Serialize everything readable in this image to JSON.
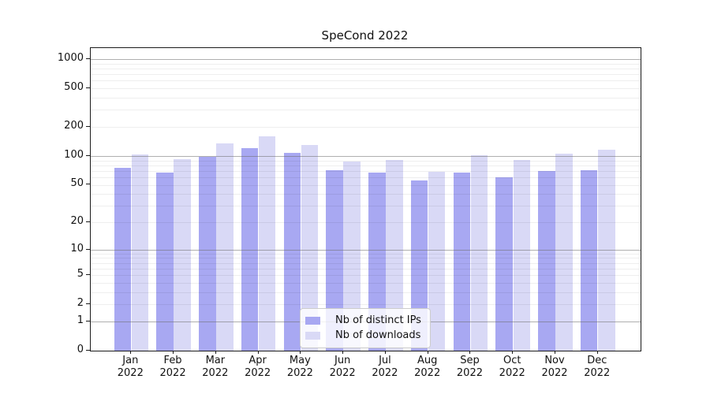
{
  "title": "SpeCond 2022",
  "legend": {
    "items": [
      {
        "label": "Nb of distinct IPs",
        "color": "#a8a8f2"
      },
      {
        "label": "Nb of downloads",
        "color": "#d9d9f6"
      }
    ]
  },
  "colors": {
    "bar_distinct_ips": "#a8a8f2",
    "bar_downloads": "#d9d9f6",
    "major_gridline": "#6e6e6e",
    "minor_gridline": "#e8e8e8",
    "spine": "#1a1a1a",
    "background": "#ffffff"
  },
  "chart_data": {
    "type": "bar",
    "title": "SpeCond 2022",
    "xlabel": "",
    "ylabel": "",
    "y_scale": "log1p",
    "grid": true,
    "legend_position": "lower-center",
    "categories": [
      "Jan",
      "Feb",
      "Mar",
      "Apr",
      "May",
      "Jun",
      "Jul",
      "Aug",
      "Sep",
      "Oct",
      "Nov",
      "Dec"
    ],
    "category_year": "2022",
    "series": [
      {
        "name": "Nb of distinct IPs",
        "color": "#a8a8f2",
        "values": [
          75,
          67,
          98,
          120,
          107,
          71,
          67,
          55,
          67,
          60,
          70,
          71
        ]
      },
      {
        "name": "Nb of downloads",
        "color": "#d9d9f6",
        "values": [
          103,
          92,
          136,
          160,
          130,
          88,
          90,
          69,
          102,
          90,
          105,
          115
        ]
      }
    ],
    "y_ticks": [
      0,
      1,
      2,
      5,
      10,
      20,
      50,
      100,
      200,
      500,
      1000
    ],
    "major_gridlines": [
      1,
      10,
      100,
      1000
    ],
    "minor_gridlines": [
      3,
      4,
      6,
      7,
      8,
      9,
      30,
      40,
      60,
      70,
      80,
      90,
      300,
      400,
      600,
      700,
      800,
      900
    ],
    "light_tick_gridlines": [
      2,
      5,
      20,
      50,
      200,
      500
    ],
    "ylim": [
      0,
      1100
    ]
  }
}
